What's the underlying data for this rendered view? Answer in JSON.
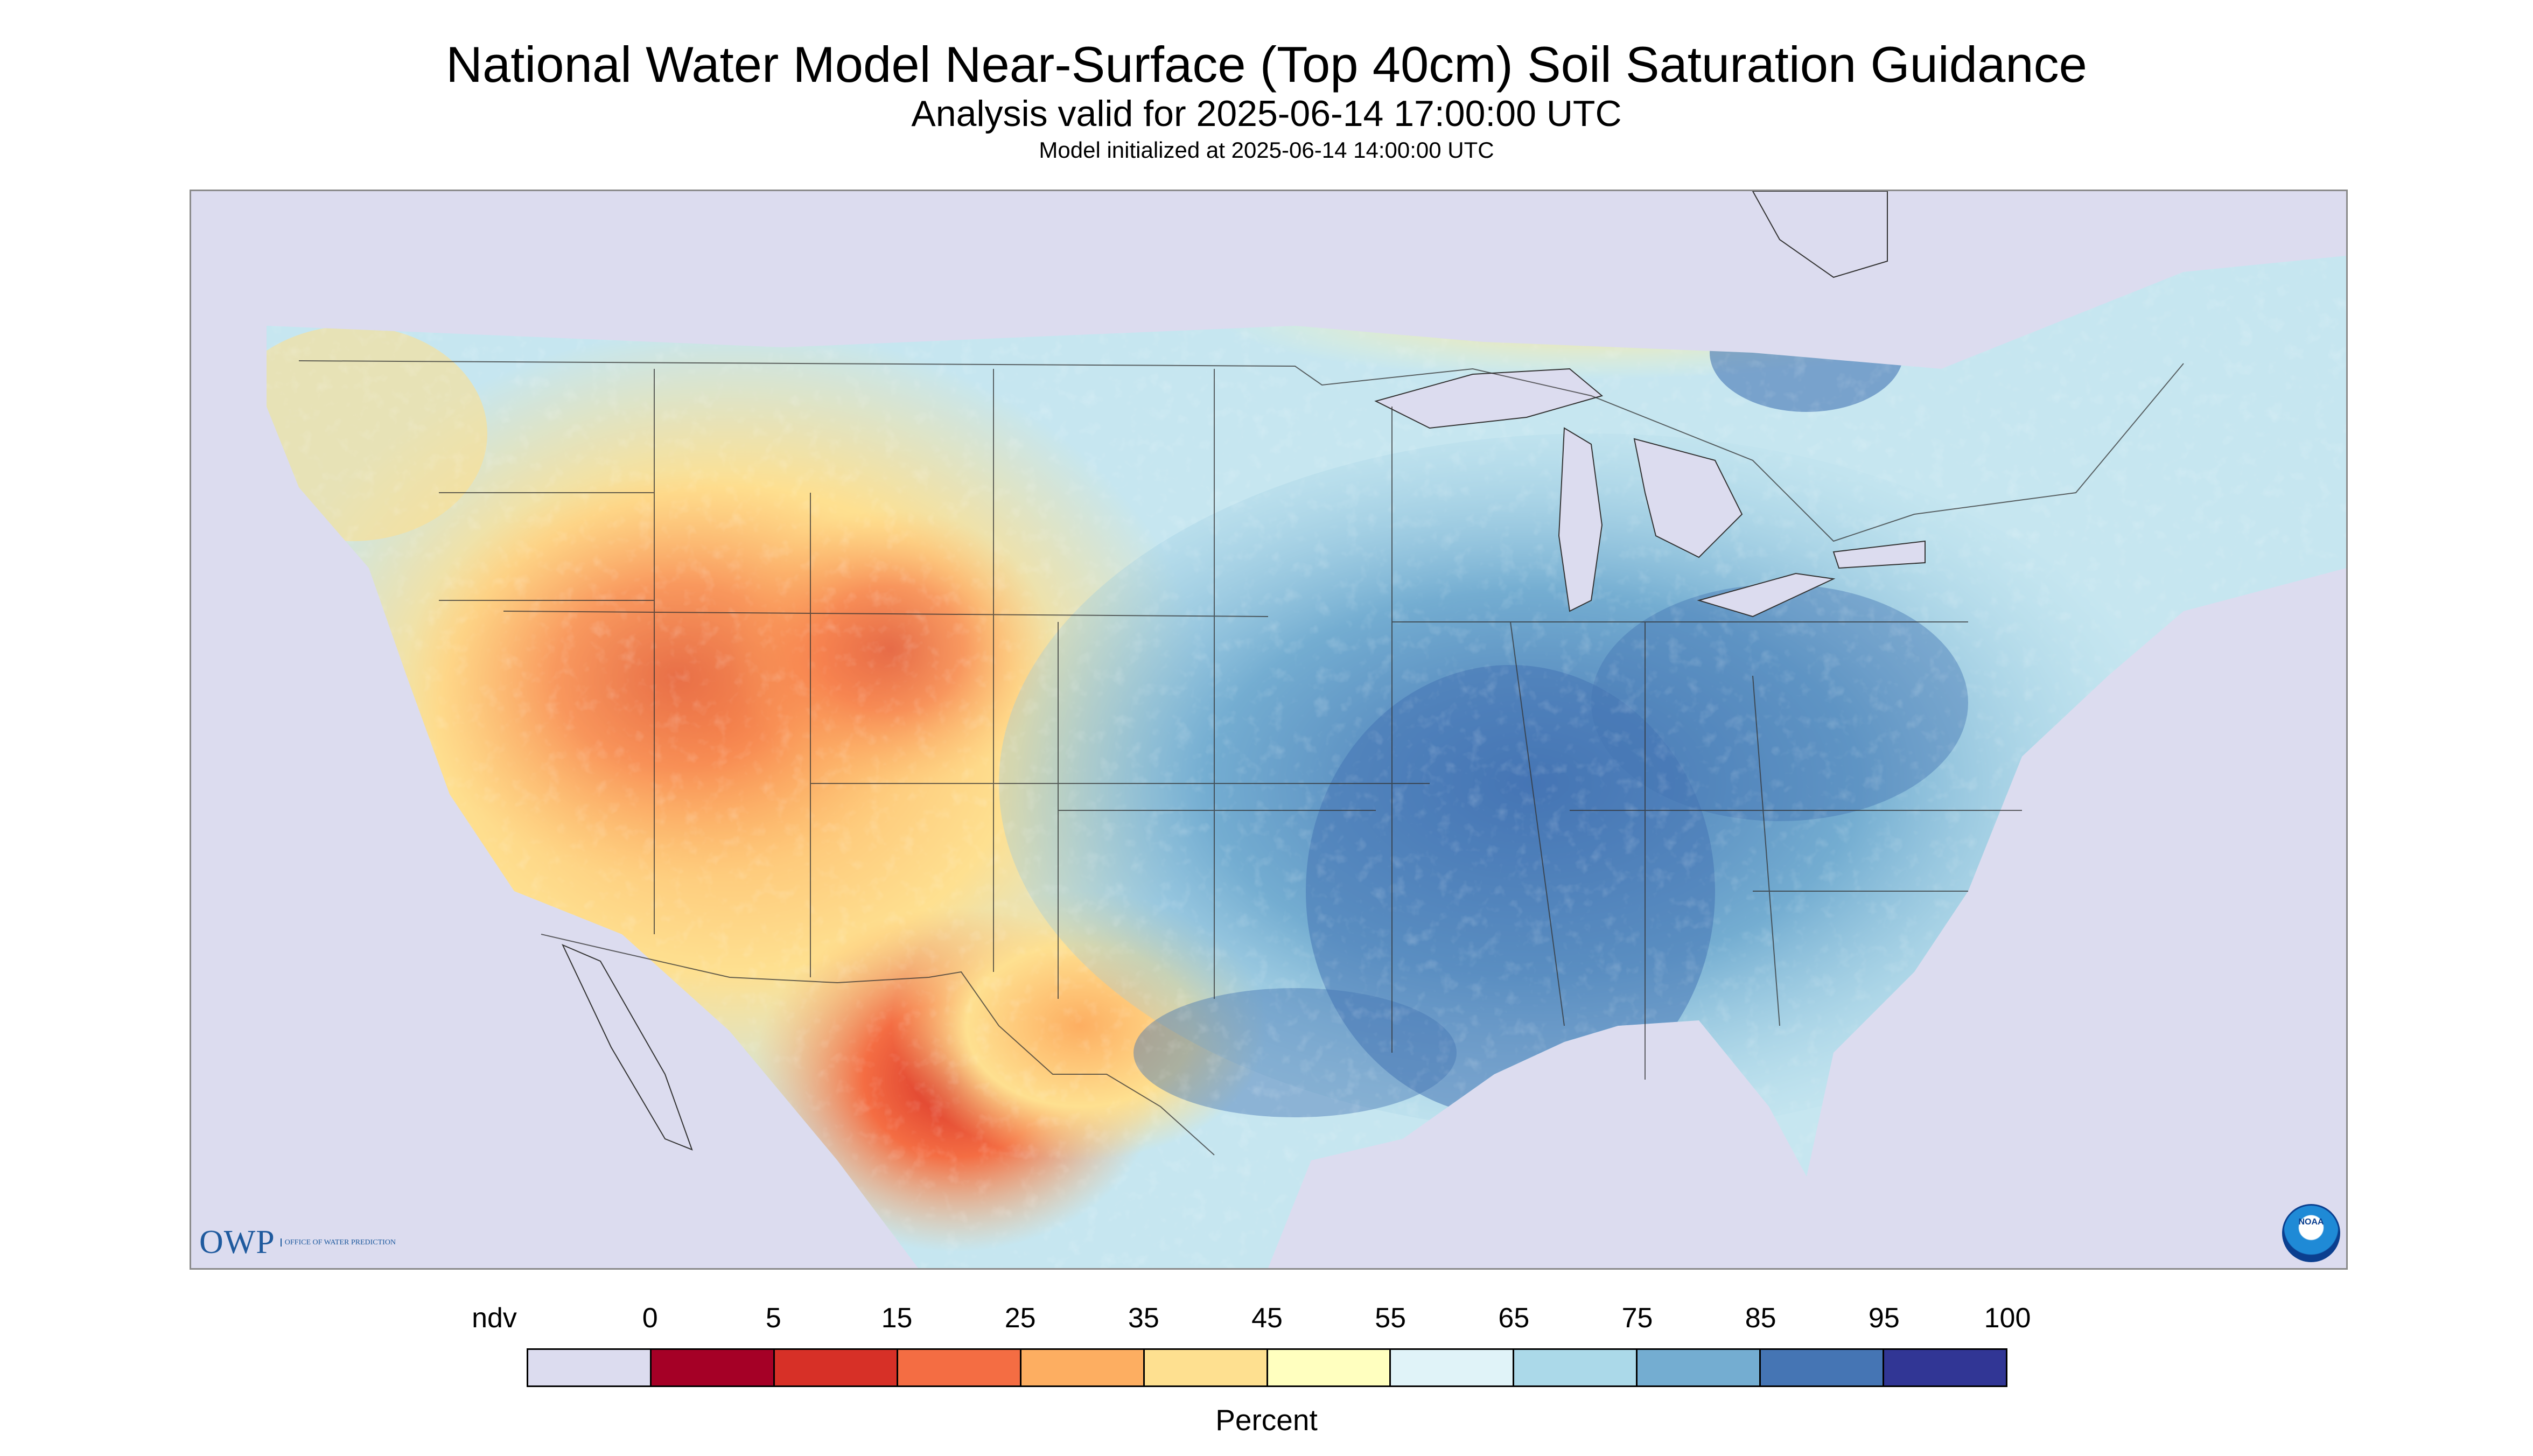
{
  "title": "National Water Model Near-Surface (Top 40cm) Soil Saturation Guidance",
  "subtitle": "Analysis valid for 2025-06-14 17:00:00 UTC",
  "init_line": "Model initialized at 2025-06-14 14:00:00 UTC",
  "logos": {
    "owp_text": "OWP",
    "owp_sub": "Office of Water Prediction",
    "noaa_text": "NOAA"
  },
  "legend": {
    "unit": "Percent",
    "labels": [
      "ndv",
      "0",
      "5",
      "15",
      "25",
      "35",
      "45",
      "55",
      "65",
      "75",
      "85",
      "95",
      "100"
    ],
    "colors": [
      "#dcdcef",
      "#a50026",
      "#d73027",
      "#f46d43",
      "#fdae61",
      "#fee090",
      "#ffffbf",
      "#e0f3f8",
      "#abd9e9",
      "#74add1",
      "#4575b4",
      "#313695"
    ]
  },
  "map": {
    "no_data_color": "#dcdcef",
    "water_color": "#dcdcef",
    "border_color": "#333333"
  }
}
